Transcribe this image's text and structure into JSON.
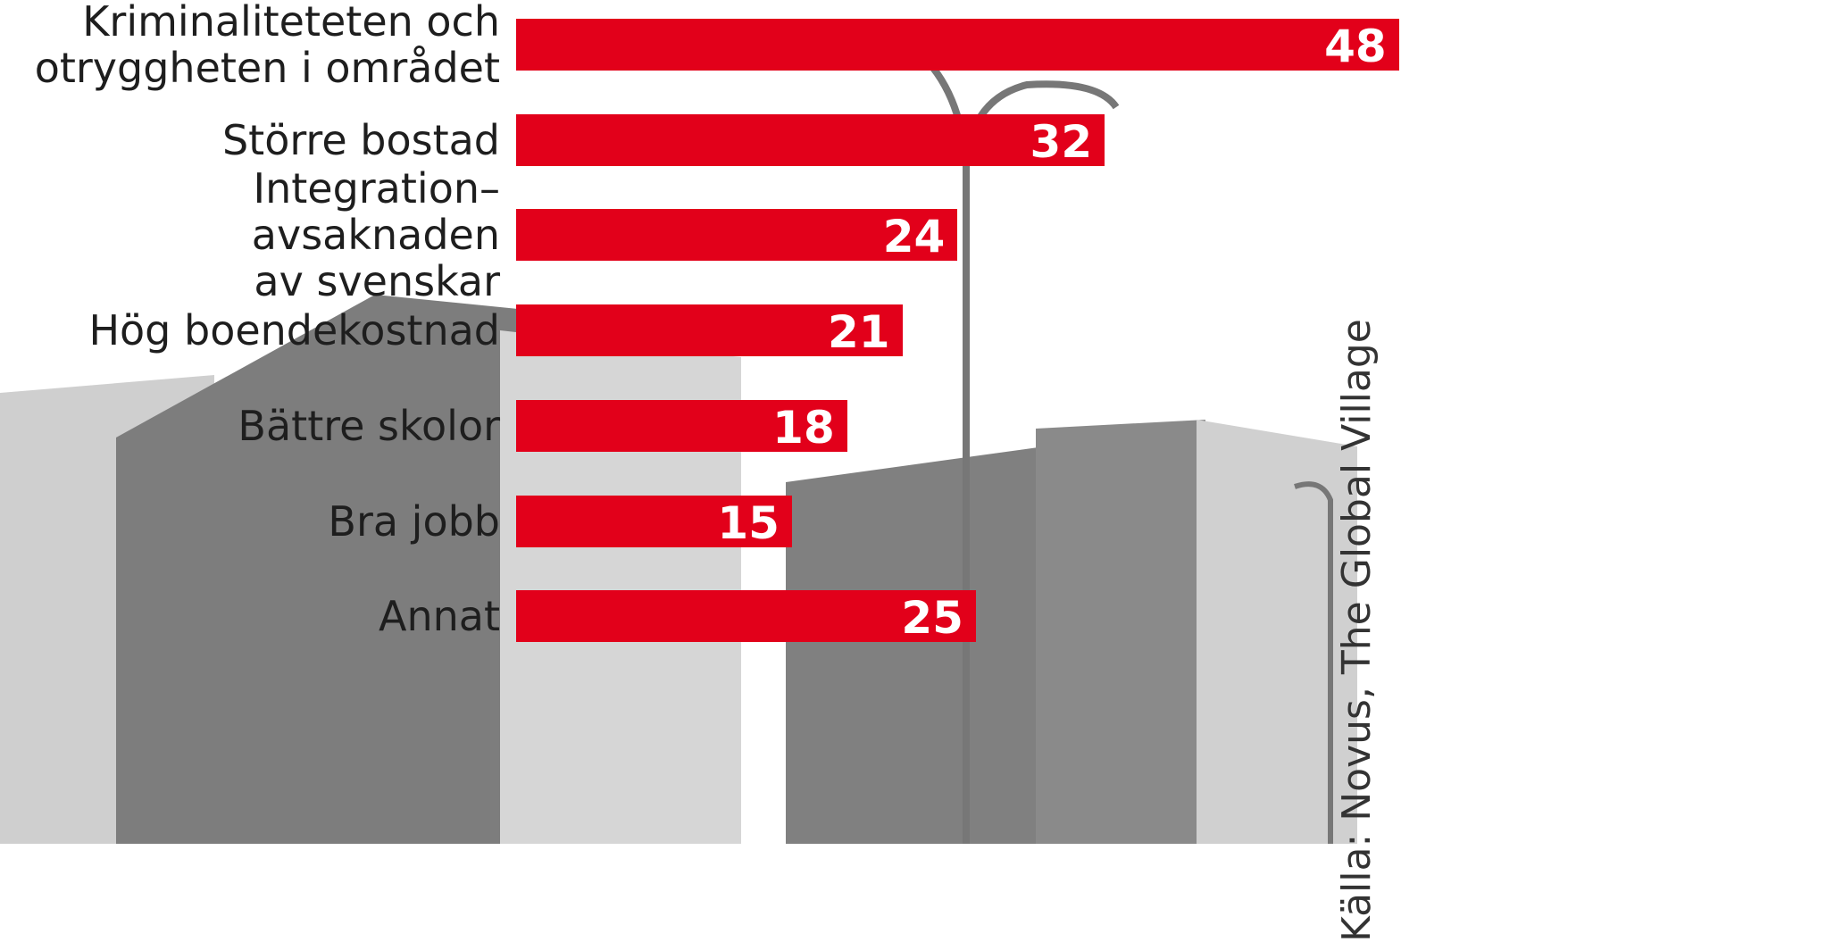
{
  "chart_data": {
    "type": "bar",
    "orientation": "horizontal",
    "categories": [
      "Kriminaliteteten och\notryggheten i området",
      "Större bostad",
      "Integration– avsaknaden\nav svenskar",
      "Hög boendekostnad",
      "Bättre skolor",
      "Bra jobb",
      "Annat"
    ],
    "values": [
      48,
      32,
      24,
      21,
      18,
      15,
      25
    ],
    "color": "#e2001a",
    "xlim": [
      0,
      72
    ],
    "source": "Källa: Novus, The Global Village"
  }
}
